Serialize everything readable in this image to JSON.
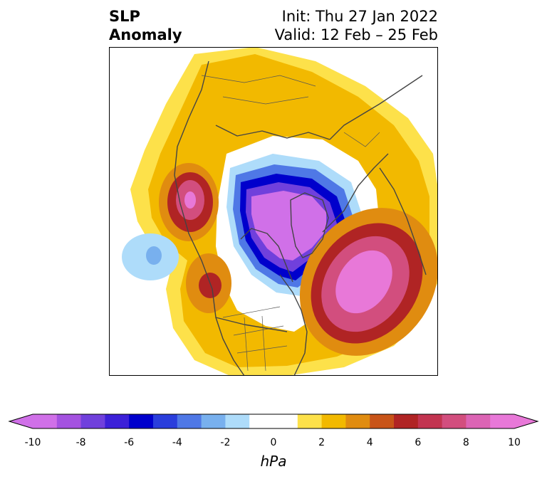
{
  "header": {
    "title_line1": "SLP",
    "title_line2": "Anomaly",
    "init": "Init: Thu 27 Jan 2022",
    "valid": "Valid: 12 Feb – 25 Feb"
  },
  "map": {
    "projection": "polar-stereographic (North Pole centered)",
    "field": "sea level pressure anomaly",
    "features": [
      {
        "kind": "negative-center",
        "region": "Arctic / Greenland",
        "approx_hpa": -10
      },
      {
        "kind": "positive-center",
        "region": "North Atlantic",
        "approx_hpa": 10
      },
      {
        "kind": "positive-center",
        "region": "Alaska / NE Pacific",
        "approx_hpa": 8
      },
      {
        "kind": "positive-center",
        "region": "Western North America",
        "approx_hpa": 6
      },
      {
        "kind": "negative-center",
        "region": "North Pacific",
        "approx_hpa": -2
      }
    ]
  },
  "colorbar": {
    "units": "hPa",
    "ticks": [
      "-10",
      "-8",
      "-6",
      "-4",
      "-2",
      "0",
      "2",
      "4",
      "6",
      "8",
      "10"
    ],
    "bins": [
      {
        "from": -10,
        "to": -9,
        "color": "#d070e8"
      },
      {
        "from": -9,
        "to": -8,
        "color": "#a452e0"
      },
      {
        "from": -8,
        "to": -7,
        "color": "#7040dc"
      },
      {
        "from": -7,
        "to": -6,
        "color": "#3c20d8"
      },
      {
        "from": -6,
        "to": -5,
        "color": "#0000cc"
      },
      {
        "from": -5,
        "to": -4,
        "color": "#2a3edc"
      },
      {
        "from": -4,
        "to": -3,
        "color": "#4f78e6"
      },
      {
        "from": -3,
        "to": -2,
        "color": "#78b0ee"
      },
      {
        "from": -2,
        "to": -1,
        "color": "#aedcfa"
      },
      {
        "from": -1,
        "to": 0,
        "color": "#ffffff"
      },
      {
        "from": 0,
        "to": 1,
        "color": "#ffffff"
      },
      {
        "from": 1,
        "to": 2,
        "color": "#fde14a"
      },
      {
        "from": 2,
        "to": 3,
        "color": "#f2b900"
      },
      {
        "from": 3,
        "to": 4,
        "color": "#e08c10"
      },
      {
        "from": 4,
        "to": 5,
        "color": "#c85418"
      },
      {
        "from": 5,
        "to": 6,
        "color": "#b02424"
      },
      {
        "from": 6,
        "to": 7,
        "color": "#c23450"
      },
      {
        "from": 7,
        "to": 8,
        "color": "#d24e7e"
      },
      {
        "from": 8,
        "to": 9,
        "color": "#dc64b4"
      },
      {
        "from": 9,
        "to": 10,
        "color": "#e878d8"
      }
    ],
    "extend_low_color": "#d070e8",
    "extend_high_color": "#e878d8"
  }
}
